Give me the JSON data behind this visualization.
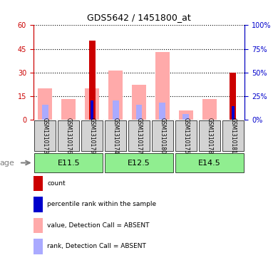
{
  "title": "GDS5642 / 1451800_at",
  "samples": [
    "GSM1310173",
    "GSM1310176",
    "GSM1310179",
    "GSM1310174",
    "GSM1310177",
    "GSM1310180",
    "GSM1310175",
    "GSM1310178",
    "GSM1310181"
  ],
  "count_values": [
    0,
    0,
    50,
    0,
    0,
    0,
    0,
    0,
    30
  ],
  "rank_values": [
    0,
    0,
    20,
    0,
    0,
    0,
    0,
    0,
    14
  ],
  "absent_value": [
    20,
    13,
    20,
    31,
    22,
    43,
    6,
    13,
    0
  ],
  "absent_rank": [
    16,
    0,
    0,
    20,
    16,
    18,
    6,
    0,
    0
  ],
  "ylim_left": [
    0,
    60
  ],
  "ylim_right": [
    0,
    100
  ],
  "yticks_left": [
    0,
    15,
    30,
    45,
    60
  ],
  "yticks_right": [
    0,
    25,
    50,
    75,
    100
  ],
  "left_color": "#cc0000",
  "right_color": "#0000cc",
  "count_color": "#cc0000",
  "rank_color": "#0000cc",
  "absent_value_color": "#ffaaaa",
  "absent_rank_color": "#aaaaff",
  "age_label": "age",
  "bar_bg_color": "#d3d3d3",
  "group_bg_color": "#90EE90",
  "group_configs": [
    {
      "label": "E11.5",
      "start": 0,
      "end": 2
    },
    {
      "label": "E12.5",
      "start": 3,
      "end": 5
    },
    {
      "label": "E14.5",
      "start": 6,
      "end": 8
    }
  ],
  "legend_items": [
    {
      "color": "#cc0000",
      "label": "count"
    },
    {
      "color": "#0000cc",
      "label": "percentile rank within the sample"
    },
    {
      "color": "#ffaaaa",
      "label": "value, Detection Call = ABSENT"
    },
    {
      "color": "#aaaaff",
      "label": "rank, Detection Call = ABSENT"
    }
  ]
}
